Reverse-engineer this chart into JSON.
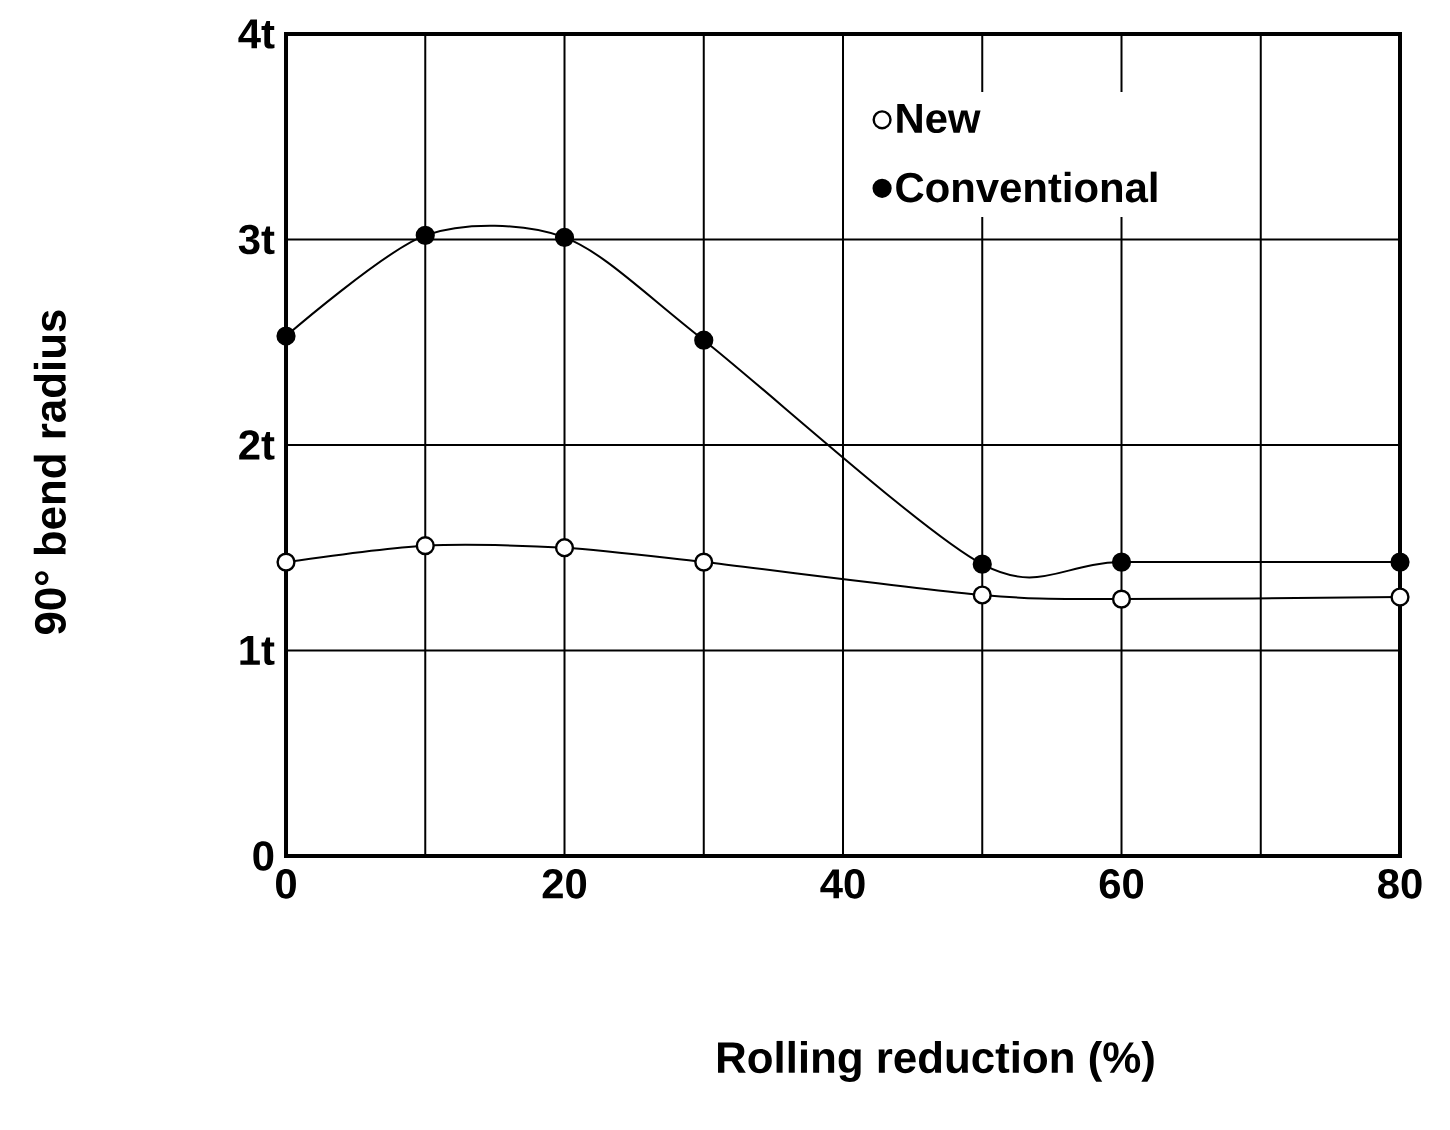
{
  "chart_data": {
    "type": "line",
    "xlabel": "Rolling reduction (%)",
    "ylabel": "90° bend radius",
    "x": [
      0,
      10,
      20,
      30,
      50,
      60,
      80
    ],
    "series": [
      {
        "name": "New",
        "color": "#000000",
        "colors": [
          "#ffffff",
          "#ffffff",
          "#ffffff",
          "#ffffff",
          "#ffffff",
          "#ffffff",
          "#ffffff"
        ],
        "values": [
          1.43,
          1.51,
          1.5,
          1.43,
          1.27,
          1.25,
          1.26
        ]
      },
      {
        "name": "Conventional",
        "color": "#000000",
        "colors": [
          "#000000",
          "#000000",
          "#000000",
          "#000000",
          "#000000",
          "#000000",
          "#000000"
        ],
        "values": [
          2.53,
          3.02,
          3.01,
          2.51,
          1.42,
          1.43,
          1.43
        ]
      }
    ],
    "xlim": [
      0,
      80
    ],
    "ylim": [
      0,
      4
    ],
    "xticks": [
      0,
      {
        "value": 10,
        "label": null
      },
      20,
      {
        "value": 30,
        "label": null
      },
      40,
      {
        "value": 50,
        "label": null
      },
      60,
      {
        "value": 70,
        "label": null
      },
      80
    ],
    "yticks": [
      0,
      {
        "value": 1,
        "label": "1t"
      },
      {
        "value": 2,
        "label": "2t"
      },
      {
        "value": 3,
        "label": "3t"
      },
      {
        "value": 4,
        "label": "4t"
      }
    ],
    "grid": true,
    "legend": "top right",
    "marker": "circle",
    "line_style": "solid"
  }
}
